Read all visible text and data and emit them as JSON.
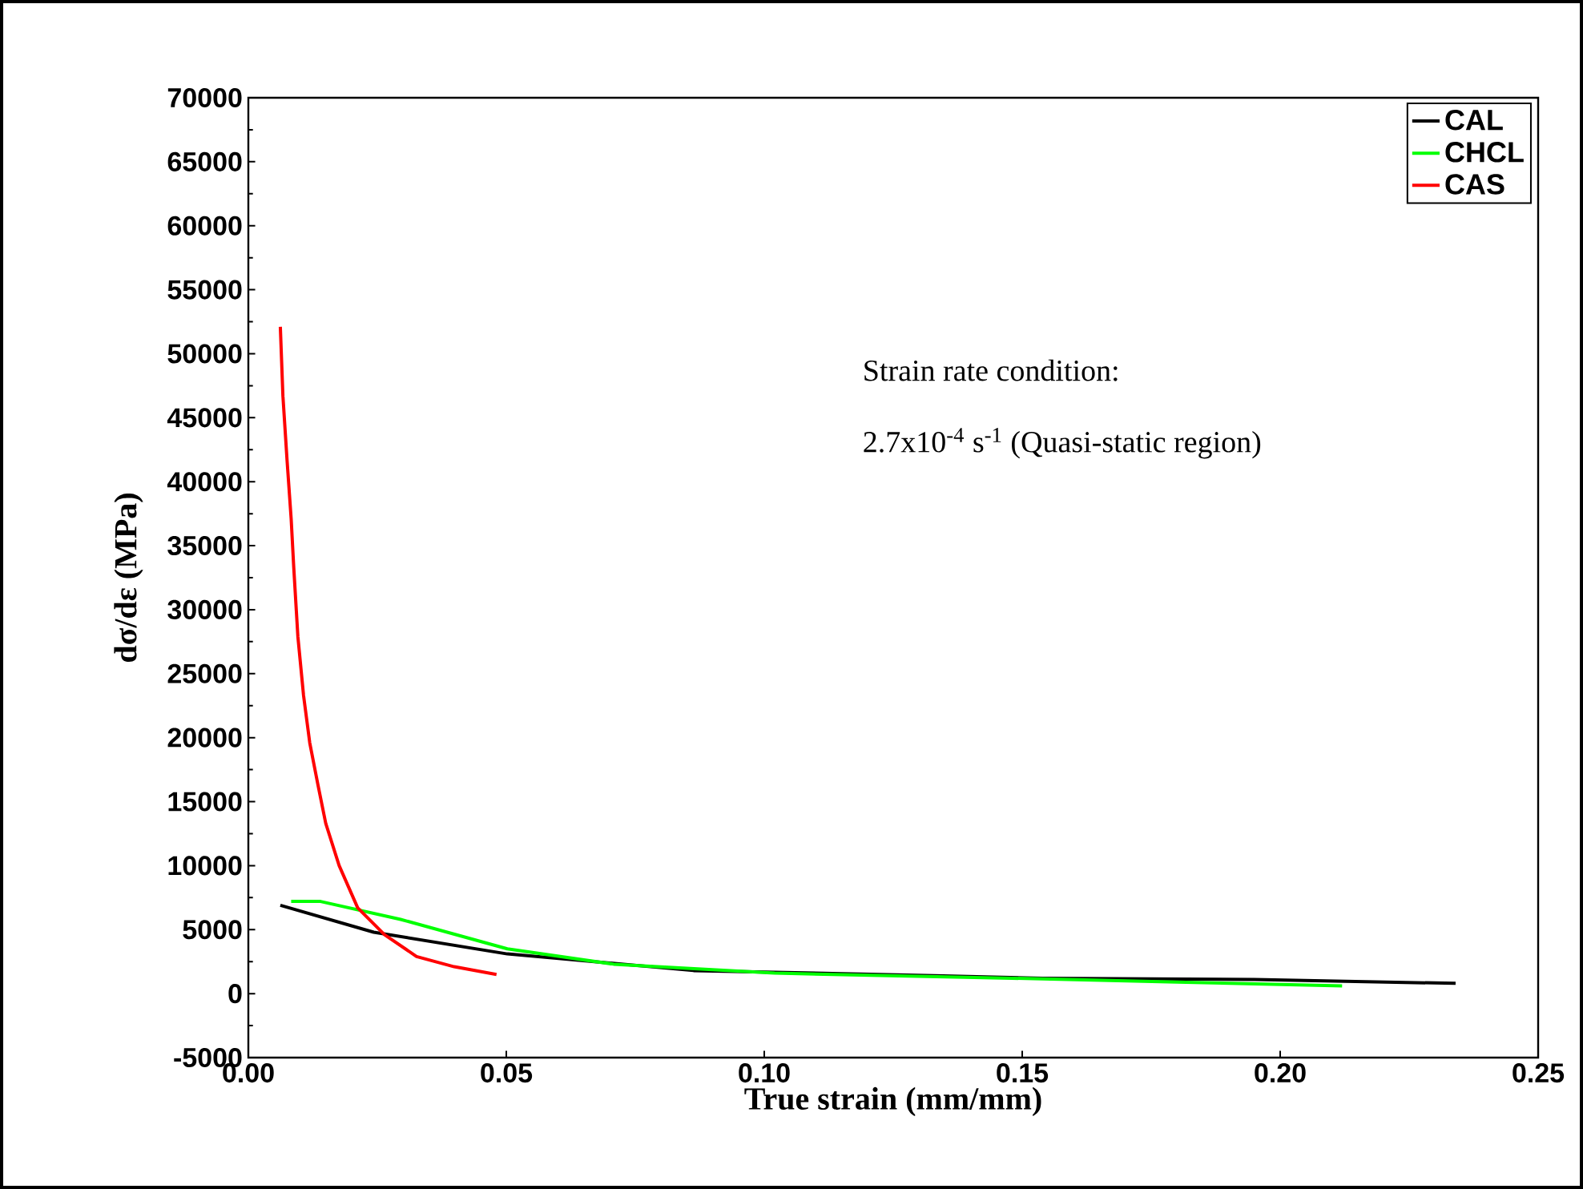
{
  "chart_data": {
    "type": "line",
    "xlabel": "True strain (mm/mm)",
    "ylabel": "dσ/dε (MPa)",
    "xlim": [
      0,
      0.25
    ],
    "ylim": [
      -5000,
      70000
    ],
    "xticks": [
      {
        "value": 0,
        "label": "0.00"
      },
      0.05,
      {
        "value": 0.1,
        "label": "0.10"
      },
      0.15,
      {
        "value": 0.2,
        "label": "0.20"
      },
      0.25
    ],
    "yticks": [
      -5000,
      0,
      5000,
      10000,
      15000,
      20000,
      25000,
      30000,
      35000,
      40000,
      45000,
      50000,
      55000,
      60000,
      65000,
      70000
    ],
    "grid": false,
    "legend": "top right",
    "marker": "none",
    "line_style": "solid",
    "annotations": [
      "Strain rate condition:",
      "2.7x10$^{-4}$ s$^{-1}$ (Quasi-static region)"
    ],
    "series": [
      {
        "name": "CAL",
        "color": "#000000",
        "x": [
          0.0062,
          0.0243,
          0.0502,
          0.0863,
          0.133,
          0.154,
          0.195,
          0.234
        ],
        "values": [
          6900,
          4800,
          3100,
          1800,
          1400,
          1200,
          1100,
          800
        ]
      },
      {
        "name": "CHCL",
        "color": "#00ff00",
        "x": [
          0.0083,
          0.014,
          0.0295,
          0.0502,
          0.0708,
          0.102,
          0.148,
          0.18,
          0.212
        ],
        "values": [
          7200,
          7200,
          5800,
          3500,
          2300,
          1600,
          1200,
          900,
          600
        ]
      },
      {
        "name": "CAS",
        "color": "#ff0000",
        "x": [
          0.0062,
          0.0067,
          0.0075,
          0.0083,
          0.0088,
          0.0096,
          0.0107,
          0.0119,
          0.0135,
          0.015,
          0.0176,
          0.0212,
          0.0264,
          0.0326,
          0.0399,
          0.0481
        ],
        "values": [
          52100,
          46700,
          41700,
          37100,
          33300,
          27900,
          23300,
          19600,
          16300,
          13300,
          10000,
          6700,
          4600,
          2900,
          2100,
          1500
        ]
      }
    ]
  }
}
